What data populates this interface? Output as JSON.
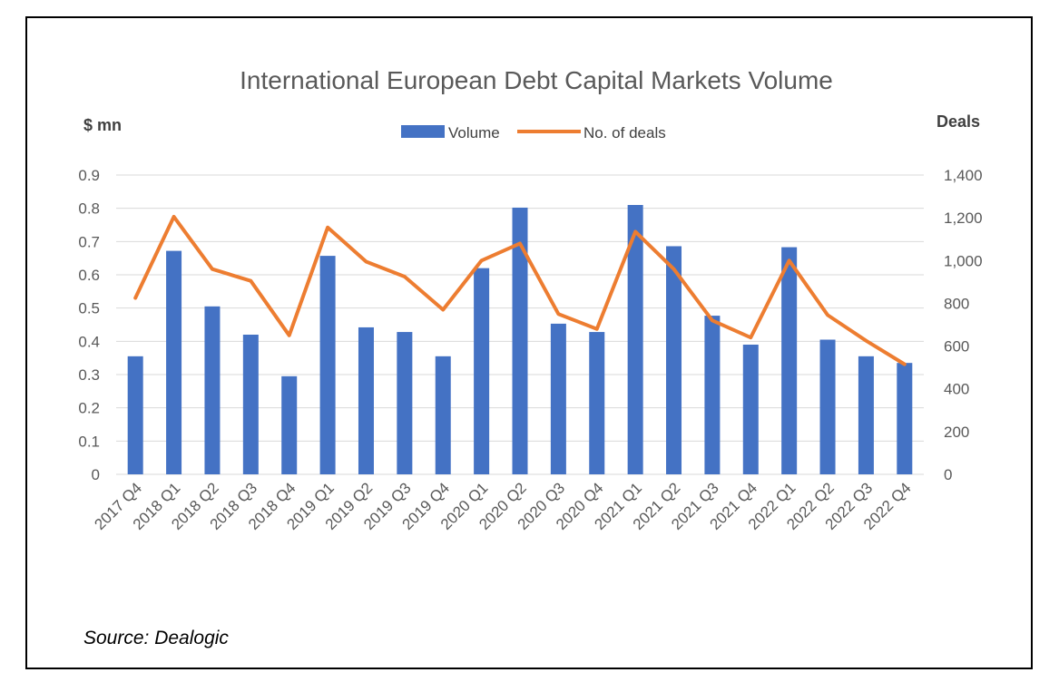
{
  "source": "Source: Dealogic",
  "chart_data": {
    "type": "bar",
    "title": "International European Debt Capital Markets Volume",
    "ylabel_left": "$ mn",
    "ylabel_right": "Deals",
    "categories": [
      "2017 Q4",
      "2018 Q1",
      "2018 Q2",
      "2018 Q3",
      "2018 Q4",
      "2019 Q1",
      "2019 Q2",
      "2019 Q3",
      "2019 Q4",
      "2020 Q1",
      "2020 Q2",
      "2020 Q3",
      "2020 Q4",
      "2021 Q1",
      "2021 Q2",
      "2021 Q3",
      "2021 Q4",
      "2022 Q1",
      "2022 Q2",
      "2022 Q3",
      "2022 Q4"
    ],
    "series": [
      {
        "name": "Volume",
        "type": "bar",
        "axis": "left",
        "color": "#4472C4",
        "values": [
          0.355,
          0.672,
          0.505,
          0.42,
          0.295,
          0.657,
          0.442,
          0.428,
          0.355,
          0.62,
          0.802,
          0.453,
          0.428,
          0.81,
          0.686,
          0.477,
          0.39,
          0.683,
          0.405,
          0.355,
          0.335
        ]
      },
      {
        "name": "No. of deals",
        "type": "line",
        "axis": "right",
        "color": "#ED7D31",
        "values": [
          825,
          1205,
          960,
          905,
          650,
          1155,
          995,
          925,
          770,
          1000,
          1080,
          750,
          680,
          1135,
          960,
          720,
          640,
          1000,
          745,
          625,
          515
        ]
      }
    ],
    "ylim_left": [
      0,
      0.9
    ],
    "yticks_left": [
      "0",
      "0.1",
      "0.2",
      "0.3",
      "0.4",
      "0.5",
      "0.6",
      "0.7",
      "0.8",
      "0.9"
    ],
    "ylim_right": [
      0,
      1400
    ],
    "yticks_right": [
      "0",
      "200",
      "400",
      "600",
      "800",
      "1,000",
      "1,200",
      "1,400"
    ],
    "grid": true,
    "legend": "top-center"
  }
}
